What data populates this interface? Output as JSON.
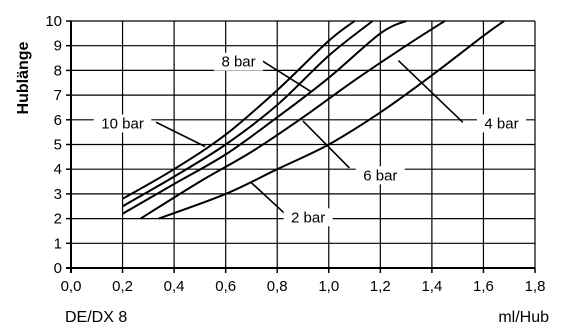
{
  "chart_data": {
    "type": "line",
    "ylabel": "Hublänge",
    "xlabel": "ml/Hub",
    "footer_label": "DE/DX 8",
    "xlim": [
      0,
      1.8
    ],
    "ylim": [
      0,
      10
    ],
    "x_ticks": [
      "0,0",
      "0,2",
      "0,4",
      "0,6",
      "0,8",
      "1,0",
      "1,2",
      "1,4",
      "1,6",
      "1,8"
    ],
    "y_ticks": [
      "0",
      "1",
      "2",
      "3",
      "4",
      "5",
      "6",
      "7",
      "8",
      "9",
      "10"
    ],
    "grid": true,
    "series": [
      {
        "name": "10 bar",
        "x": [
          0.2,
          0.4,
          0.6,
          0.8,
          1.0,
          1.1
        ],
        "y": [
          2.8,
          4.0,
          5.4,
          7.2,
          9.2,
          10.0
        ]
      },
      {
        "name": "8 bar",
        "x": [
          0.2,
          0.4,
          0.6,
          0.8,
          1.0,
          1.17
        ],
        "y": [
          2.5,
          3.7,
          5.0,
          6.6,
          8.6,
          10.0
        ]
      },
      {
        "name": "6 bar",
        "x": [
          0.2,
          0.4,
          0.6,
          0.8,
          1.0,
          1.2,
          1.3
        ],
        "y": [
          2.2,
          3.4,
          4.6,
          6.1,
          7.7,
          9.5,
          10.0
        ]
      },
      {
        "name": "4 bar",
        "x": [
          0.27,
          0.5,
          0.7,
          0.9,
          1.1,
          1.3,
          1.45
        ],
        "y": [
          2.0,
          3.5,
          4.7,
          6.1,
          7.6,
          9.0,
          10.0
        ]
      },
      {
        "name": "2 bar",
        "x": [
          0.34,
          0.6,
          0.8,
          1.0,
          1.2,
          1.4,
          1.6,
          1.68
        ],
        "y": [
          2.0,
          3.0,
          4.0,
          5.0,
          6.3,
          7.8,
          9.4,
          10.0
        ]
      }
    ],
    "annotations": [
      {
        "text": "10 bar",
        "series": "10 bar"
      },
      {
        "text": "8 bar",
        "series": "8 bar"
      },
      {
        "text": "6 bar",
        "series": "6 bar"
      },
      {
        "text": "4 bar",
        "series": "4 bar"
      },
      {
        "text": "2 bar",
        "series": "2 bar"
      }
    ]
  }
}
